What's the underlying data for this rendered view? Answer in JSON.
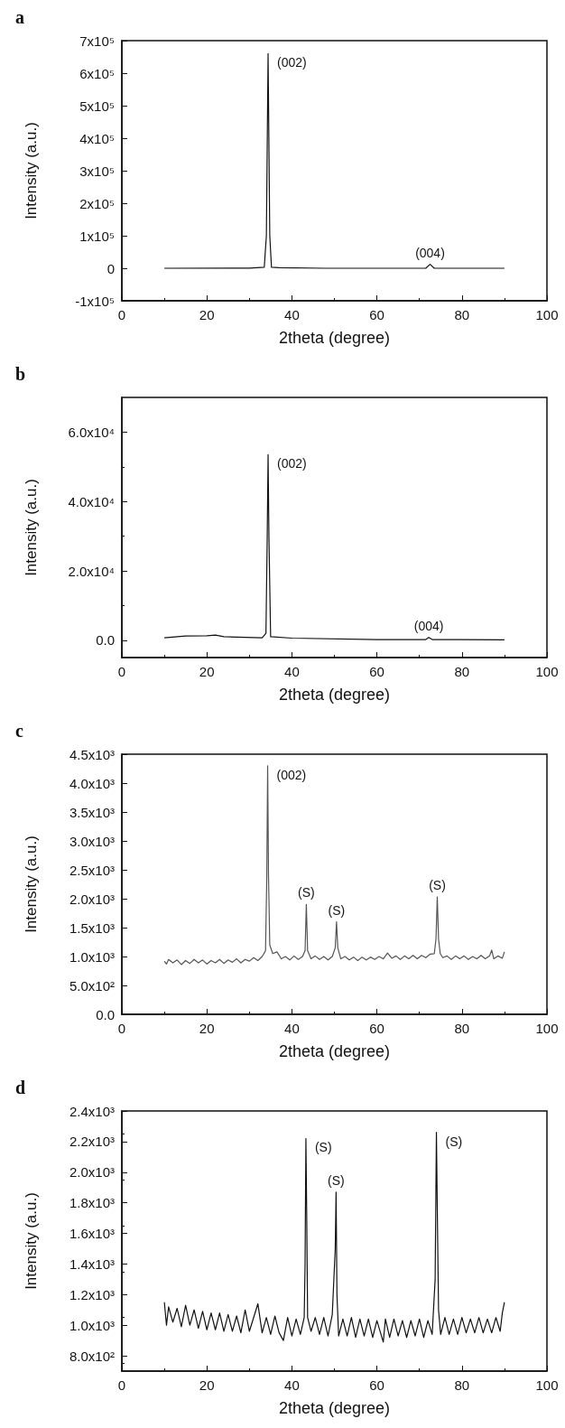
{
  "chart_data": [
    {
      "type": "line",
      "title": "a",
      "xlabel": "2theta (degree)",
      "ylabel": "Intensity (a.u.)",
      "xlim": [
        0,
        100
      ],
      "xticks": [
        0,
        20,
        40,
        60,
        80,
        100
      ],
      "ylim": [
        -100000,
        700000
      ],
      "yticks": [
        {
          "value": -100000,
          "label": "-1x10⁵"
        },
        0,
        {
          "value": 100000,
          "label": "1x10⁵"
        },
        {
          "value": 200000,
          "label": "2x10⁵"
        },
        {
          "value": 300000,
          "label": "3x10⁵"
        },
        {
          "value": 400000,
          "label": "4x10⁵"
        },
        {
          "value": 500000,
          "label": "5x10⁵"
        },
        {
          "value": 600000,
          "label": "6x10⁵"
        },
        {
          "value": 700000,
          "label": "7x10⁵"
        }
      ],
      "x": [
        10,
        30,
        33.5,
        34.0,
        34.4,
        34.8,
        35.2,
        37,
        48,
        71.5,
        72.5,
        73.5,
        90
      ],
      "series": [
        {
          "color": "#111111",
          "values": [
            0,
            500,
            3000,
            100000,
            660000,
            100000,
            3000,
            2000,
            0,
            0,
            12000,
            0,
            0
          ]
        }
      ],
      "annotations": [
        {
          "text": "(002)",
          "x": 34.4,
          "y": 660000
        },
        {
          "text": "(004)",
          "x": 72.5,
          "y": 12000
        }
      ],
      "grid": false,
      "marker": "none"
    },
    {
      "type": "line",
      "title": "b",
      "xlabel": "2theta (degree)",
      "ylabel": "Intensity (a.u.)",
      "xlim": [
        0,
        100
      ],
      "xticks": [
        0,
        20,
        40,
        60,
        80,
        100
      ],
      "ylim": [
        -5000,
        70000
      ],
      "yticks": [
        {
          "value": 0,
          "label": "0.0"
        },
        {
          "value": 20000,
          "label": "2.0x10⁴"
        },
        {
          "value": 40000,
          "label": "4.0x10⁴"
        },
        {
          "value": 60000,
          "label": "6.0x10⁴"
        }
      ],
      "x": [
        10,
        15,
        20,
        22,
        24,
        27,
        33,
        33.9,
        34.2,
        34.4,
        34.6,
        35,
        40,
        60,
        71.5,
        72.2,
        73,
        90
      ],
      "series": [
        {
          "color": "#111111",
          "values": [
            700,
            1200,
            1300,
            1500,
            1000,
            900,
            700,
            2000,
            30000,
            53500,
            30000,
            1000,
            600,
            200,
            200,
            800,
            200,
            100
          ]
        }
      ],
      "annotations": [
        {
          "text": "(002)",
          "x": 34.4,
          "y": 53500
        },
        {
          "text": "(004)",
          "x": 72.2,
          "y": 800
        }
      ],
      "grid": false,
      "marker": "none"
    },
    {
      "type": "line",
      "title": "c",
      "xlabel": "2theta (degree)",
      "ylabel": "Intensity (a.u.)",
      "xlim": [
        0,
        100
      ],
      "xticks": [
        0,
        20,
        40,
        60,
        80,
        100
      ],
      "ylim": [
        0,
        4500
      ],
      "yticks": [
        {
          "value": 0,
          "label": "0.0"
        },
        {
          "value": 500,
          "label": "5.0x10²"
        },
        {
          "value": 1000,
          "label": "1.0x10³"
        },
        {
          "value": 1500,
          "label": "1.5x10³"
        },
        {
          "value": 2000,
          "label": "2.0x10³"
        },
        {
          "value": 2500,
          "label": "2.5x10³"
        },
        {
          "value": 3000,
          "label": "3.0x10³"
        },
        {
          "value": 3500,
          "label": "3.5x10³"
        },
        {
          "value": 4000,
          "label": "4.0x10³"
        },
        {
          "value": 4500,
          "label": "4.5x10³"
        }
      ],
      "x": [
        10,
        10.5,
        11,
        12,
        13,
        14,
        15,
        16,
        17,
        18,
        19,
        20,
        21,
        22,
        23,
        24,
        25,
        26,
        27,
        28,
        29,
        30,
        31,
        32,
        33,
        33.8,
        34.1,
        34.3,
        34.5,
        34.8,
        35.5,
        36.5,
        37.5,
        38.5,
        39.5,
        40.5,
        41.5,
        42.5,
        43.1,
        43.4,
        43.7,
        44.5,
        45.5,
        46.5,
        47.5,
        48.5,
        49.5,
        50.2,
        50.5,
        50.8,
        51.5,
        52.5,
        53.5,
        54.5,
        55.5,
        56.5,
        57.5,
        58.5,
        59.5,
        60.5,
        61.5,
        62.5,
        63.5,
        64.5,
        65.5,
        66.5,
        67.5,
        68.5,
        69.5,
        70.5,
        71.5,
        72.5,
        73.5,
        73.9,
        74.2,
        74.5,
        74.9,
        75.5,
        76.5,
        77.5,
        78.5,
        79.5,
        80.5,
        81.5,
        82.5,
        83.5,
        84.5,
        85.5,
        86.5,
        87,
        87.5,
        88.5,
        89.5,
        90
      ],
      "series": [
        {
          "color": "#555555",
          "values": [
            920,
            870,
            950,
            890,
            940,
            860,
            930,
            880,
            950,
            890,
            940,
            870,
            930,
            890,
            950,
            880,
            940,
            900,
            960,
            890,
            950,
            920,
            980,
            930,
            1000,
            1100,
            2400,
            4300,
            2400,
            1200,
            1050,
            1080,
            960,
            1000,
            940,
            1010,
            950,
            1000,
            1100,
            1900,
            1100,
            960,
            1010,
            950,
            1000,
            940,
            1000,
            1150,
            1600,
            1150,
            960,
            1000,
            940,
            990,
            930,
            990,
            940,
            990,
            950,
            1000,
            960,
            1060,
            970,
            1010,
            950,
            1010,
            960,
            1020,
            960,
            1020,
            980,
            1040,
            1050,
            1300,
            2030,
            1300,
            1050,
            980,
            1010,
            950,
            1010,
            960,
            1010,
            950,
            1000,
            960,
            1020,
            960,
            1010,
            1110,
            960,
            1010,
            970,
            1080
          ]
        }
      ],
      "annotations": [
        {
          "text": "(002)",
          "x": 34.3,
          "y": 4300
        },
        {
          "text": "(S)",
          "x": 43.4,
          "y": 1900
        },
        {
          "text": "(S)",
          "x": 50.5,
          "y": 1600
        },
        {
          "text": "(S)",
          "x": 74.2,
          "y": 2030
        }
      ],
      "grid": false,
      "marker": "none"
    },
    {
      "type": "line",
      "title": "d",
      "xlabel": "2theta (degree)",
      "ylabel": "Intensity (a.u.)",
      "xlim": [
        0,
        100
      ],
      "xticks": [
        0,
        20,
        40,
        60,
        80,
        100
      ],
      "ylim": [
        700,
        2400
      ],
      "yticks": [
        {
          "value": 800,
          "label": "8.0x10²"
        },
        {
          "value": 1000,
          "label": "1.0x10³"
        },
        {
          "value": 1200,
          "label": "1.2x10³"
        },
        {
          "value": 1400,
          "label": "1.4x10³"
        },
        {
          "value": 1600,
          "label": "1.6x10³"
        },
        {
          "value": 1800,
          "label": "1.8x10³"
        },
        {
          "value": 2000,
          "label": "2.0x10³"
        },
        {
          "value": 2200,
          "label": "2.2x10³"
        },
        {
          "value": 2400,
          "label": "2.4x10³"
        }
      ],
      "x": [
        10,
        10.5,
        11,
        12,
        13,
        14,
        15,
        16,
        17,
        18,
        19,
        20,
        21,
        22,
        23,
        24,
        25,
        26,
        27,
        28,
        29,
        30,
        31,
        32,
        33,
        34,
        35,
        36,
        37,
        38,
        39,
        40,
        41,
        42,
        42.9,
        43.1,
        43.3,
        43.5,
        43.7,
        44.5,
        45.5,
        46.5,
        47.5,
        48.5,
        49.5,
        50.2,
        50.4,
        50.6,
        51,
        52,
        53,
        54,
        55,
        56,
        57,
        58,
        59,
        60,
        61.5,
        62,
        63,
        64,
        65,
        66,
        67,
        68,
        69,
        70,
        71,
        72,
        73,
        73.7,
        74.0,
        74.2,
        74.5,
        75,
        76,
        77,
        78,
        79,
        80,
        81,
        82,
        83,
        84,
        85,
        86,
        87,
        88,
        89,
        89.5,
        90
      ],
      "series": [
        {
          "color": "#111111",
          "values": [
            1150,
            1000,
            1120,
            1020,
            1110,
            990,
            1130,
            1000,
            1100,
            980,
            1090,
            970,
            1080,
            970,
            1080,
            960,
            1070,
            960,
            1060,
            950,
            1100,
            960,
            1050,
            1140,
            950,
            1050,
            940,
            1060,
            950,
            900,
            1050,
            930,
            1040,
            940,
            1050,
            1400,
            2220,
            1680,
            1050,
            960,
            1050,
            940,
            1050,
            930,
            1070,
            1500,
            1870,
            1200,
            930,
            1040,
            930,
            1050,
            920,
            1040,
            930,
            1040,
            920,
            1030,
            890,
            1040,
            920,
            1040,
            930,
            1030,
            920,
            1030,
            930,
            1040,
            920,
            1030,
            940,
            1300,
            2260,
            1770,
            1100,
            940,
            1050,
            940,
            1040,
            940,
            1050,
            950,
            1040,
            950,
            1050,
            950,
            1040,
            950,
            1050,
            960,
            1080,
            1150
          ]
        }
      ],
      "annotations": [
        {
          "text": "(S)",
          "x": 43.3,
          "y": 2220
        },
        {
          "text": "(S)",
          "x": 50.4,
          "y": 1870
        },
        {
          "text": "(S)",
          "x": 74.0,
          "y": 2260
        }
      ],
      "grid": false,
      "marker": "none"
    }
  ]
}
